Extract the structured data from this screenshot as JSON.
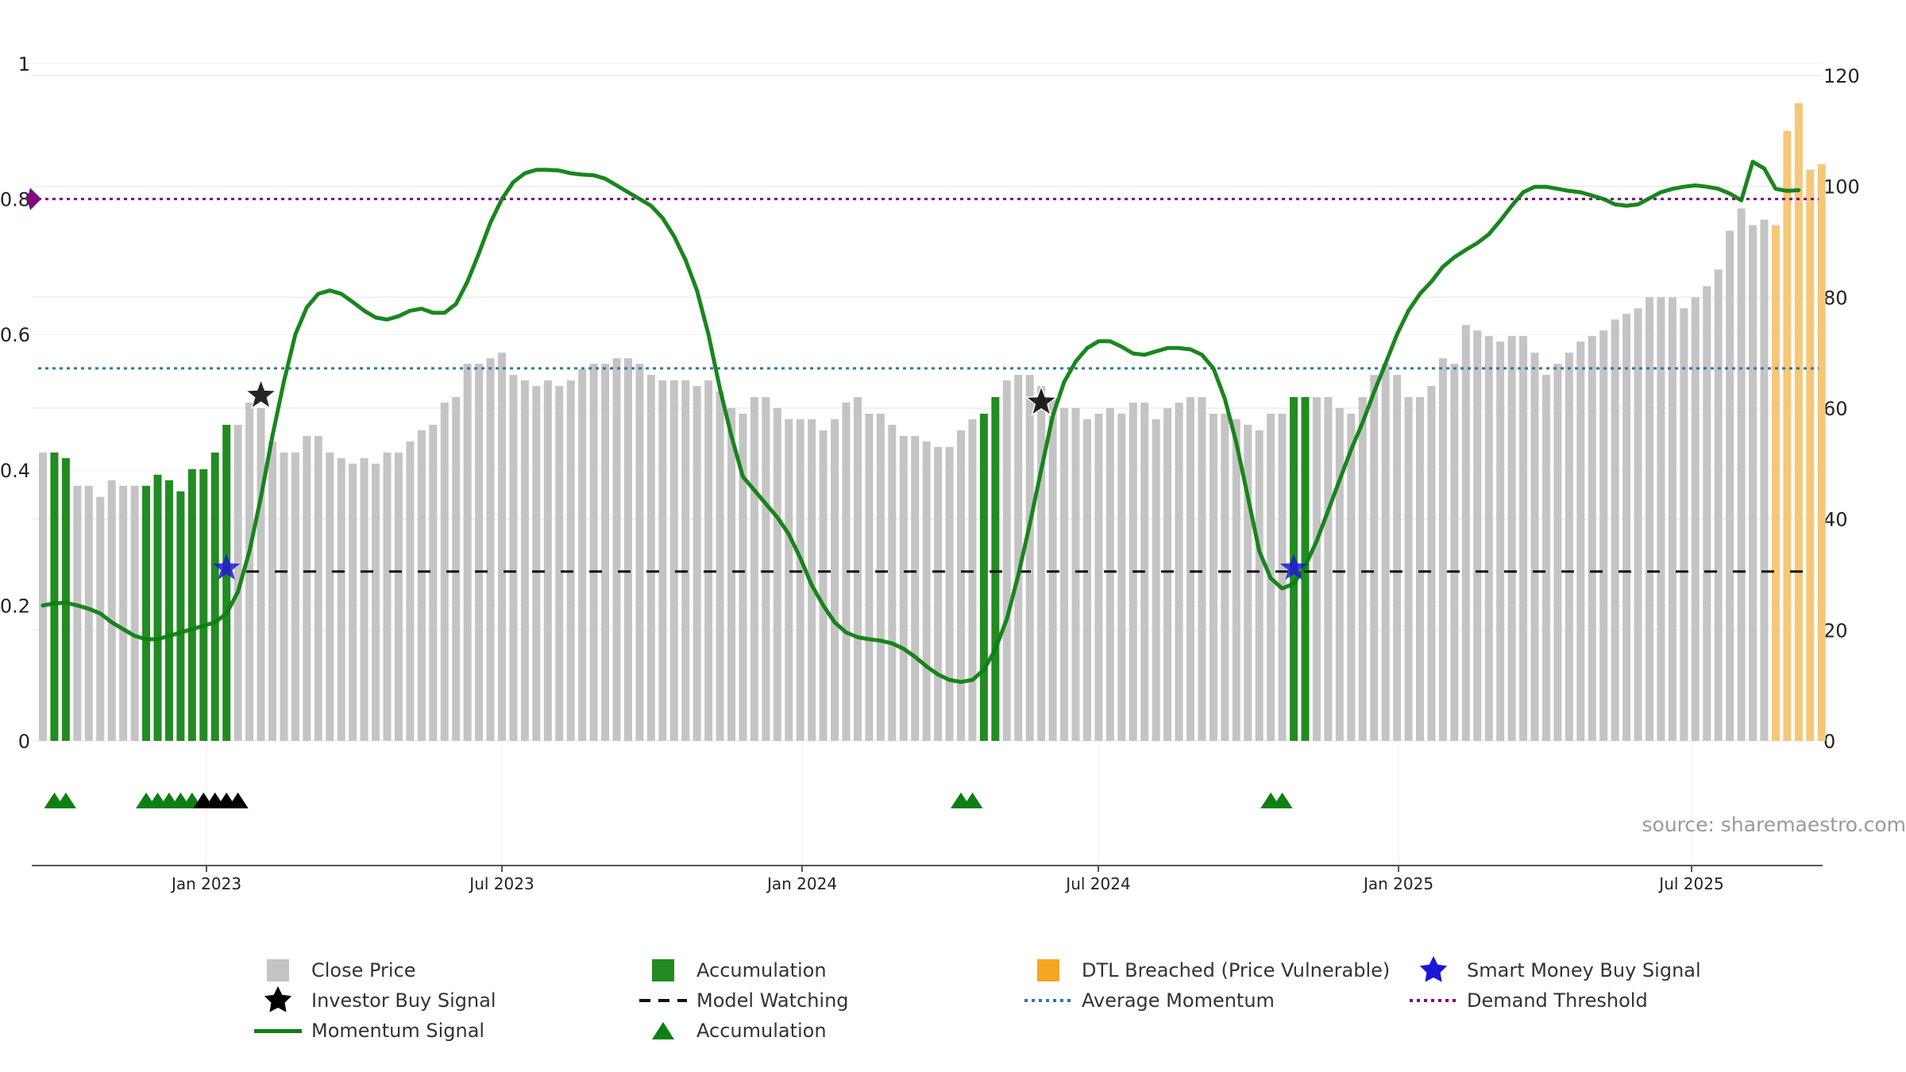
{
  "chart_data": {
    "type": "bar",
    "left_axis": {
      "min": 0,
      "max": 1,
      "ticks": [
        "0",
        "0.2",
        "0.4",
        "0.6",
        "0.8",
        "1"
      ]
    },
    "right_axis": {
      "min": 0,
      "max": 120,
      "ticks": [
        "0",
        "20",
        "40",
        "60",
        "80",
        "100",
        "120"
      ]
    },
    "x_ticks": [
      "Jan 2023",
      "Jul 2023",
      "Jan 2024",
      "Jul 2024",
      "Jan 2025",
      "Jul 2025"
    ],
    "bar_kinds": {
      "G": "Close Price",
      "A": "Accumulation",
      "O": "DTL Breached (Price Vulnerable)"
    },
    "bars": [
      [
        "G",
        52
      ],
      [
        "A",
        52
      ],
      [
        "A",
        51
      ],
      [
        "G",
        46
      ],
      [
        "G",
        46
      ],
      [
        "G",
        44
      ],
      [
        "G",
        47
      ],
      [
        "G",
        46
      ],
      [
        "G",
        46
      ],
      [
        "A",
        46
      ],
      [
        "A",
        48
      ],
      [
        "A",
        47
      ],
      [
        "A",
        45
      ],
      [
        "A",
        49
      ],
      [
        "A",
        49
      ],
      [
        "A",
        52
      ],
      [
        "A",
        57
      ],
      [
        "G",
        57
      ],
      [
        "G",
        61
      ],
      [
        "G",
        60
      ],
      [
        "G",
        54
      ],
      [
        "G",
        52
      ],
      [
        "G",
        52
      ],
      [
        "G",
        55
      ],
      [
        "G",
        55
      ],
      [
        "G",
        52
      ],
      [
        "G",
        51
      ],
      [
        "G",
        50
      ],
      [
        "G",
        51
      ],
      [
        "G",
        50
      ],
      [
        "G",
        52
      ],
      [
        "G",
        52
      ],
      [
        "G",
        54
      ],
      [
        "G",
        56
      ],
      [
        "G",
        57
      ],
      [
        "G",
        61
      ],
      [
        "G",
        62
      ],
      [
        "G",
        68
      ],
      [
        "G",
        68
      ],
      [
        "G",
        69
      ],
      [
        "G",
        70
      ],
      [
        "G",
        66
      ],
      [
        "G",
        65
      ],
      [
        "G",
        64
      ],
      [
        "G",
        65
      ],
      [
        "G",
        64
      ],
      [
        "G",
        65
      ],
      [
        "G",
        67
      ],
      [
        "G",
        68
      ],
      [
        "G",
        68
      ],
      [
        "G",
        69
      ],
      [
        "G",
        69
      ],
      [
        "G",
        68
      ],
      [
        "G",
        66
      ],
      [
        "G",
        65
      ],
      [
        "G",
        65
      ],
      [
        "G",
        65
      ],
      [
        "G",
        64
      ],
      [
        "G",
        65
      ],
      [
        "G",
        63
      ],
      [
        "G",
        60
      ],
      [
        "G",
        59
      ],
      [
        "G",
        62
      ],
      [
        "G",
        62
      ],
      [
        "G",
        60
      ],
      [
        "G",
        58
      ],
      [
        "G",
        58
      ],
      [
        "G",
        58
      ],
      [
        "G",
        56
      ],
      [
        "G",
        58
      ],
      [
        "G",
        61
      ],
      [
        "G",
        62
      ],
      [
        "G",
        59
      ],
      [
        "G",
        59
      ],
      [
        "G",
        57
      ],
      [
        "G",
        55
      ],
      [
        "G",
        55
      ],
      [
        "G",
        54
      ],
      [
        "G",
        53
      ],
      [
        "G",
        53
      ],
      [
        "G",
        56
      ],
      [
        "G",
        58
      ],
      [
        "A",
        59
      ],
      [
        "A",
        62
      ],
      [
        "G",
        65
      ],
      [
        "G",
        66
      ],
      [
        "G",
        66
      ],
      [
        "G",
        64
      ],
      [
        "G",
        62
      ],
      [
        "G",
        60
      ],
      [
        "G",
        60
      ],
      [
        "G",
        58
      ],
      [
        "G",
        59
      ],
      [
        "G",
        60
      ],
      [
        "G",
        59
      ],
      [
        "G",
        61
      ],
      [
        "G",
        61
      ],
      [
        "G",
        58
      ],
      [
        "G",
        60
      ],
      [
        "G",
        61
      ],
      [
        "G",
        62
      ],
      [
        "G",
        62
      ],
      [
        "G",
        59
      ],
      [
        "G",
        59
      ],
      [
        "G",
        58
      ],
      [
        "G",
        57
      ],
      [
        "G",
        56
      ],
      [
        "G",
        59
      ],
      [
        "G",
        59
      ],
      [
        "A",
        62
      ],
      [
        "A",
        62
      ],
      [
        "G",
        62
      ],
      [
        "G",
        62
      ],
      [
        "G",
        60
      ],
      [
        "G",
        59
      ],
      [
        "G",
        62
      ],
      [
        "G",
        66
      ],
      [
        "G",
        68
      ],
      [
        "G",
        66
      ],
      [
        "G",
        62
      ],
      [
        "G",
        62
      ],
      [
        "G",
        64
      ],
      [
        "G",
        69
      ],
      [
        "G",
        68
      ],
      [
        "G",
        75
      ],
      [
        "G",
        74
      ],
      [
        "G",
        73
      ],
      [
        "G",
        72
      ],
      [
        "G",
        73
      ],
      [
        "G",
        73
      ],
      [
        "G",
        70
      ],
      [
        "G",
        66
      ],
      [
        "G",
        68
      ],
      [
        "G",
        70
      ],
      [
        "G",
        72
      ],
      [
        "G",
        73
      ],
      [
        "G",
        74
      ],
      [
        "G",
        76
      ],
      [
        "G",
        77
      ],
      [
        "G",
        78
      ],
      [
        "G",
        80
      ],
      [
        "G",
        80
      ],
      [
        "G",
        80
      ],
      [
        "G",
        78
      ],
      [
        "G",
        80
      ],
      [
        "G",
        82
      ],
      [
        "G",
        85
      ],
      [
        "G",
        92
      ],
      [
        "G",
        96
      ],
      [
        "G",
        93
      ],
      [
        "G",
        94
      ],
      [
        "O",
        93
      ],
      [
        "O",
        110
      ],
      [
        "O",
        115
      ],
      [
        "O",
        103
      ],
      [
        "O",
        104
      ]
    ],
    "momentum_signal": [
      [
        0,
        0.2
      ],
      [
        1,
        0.203
      ],
      [
        2,
        0.204
      ],
      [
        3,
        0.2
      ],
      [
        4,
        0.195
      ],
      [
        5,
        0.188
      ],
      [
        6,
        0.175
      ],
      [
        7,
        0.165
      ],
      [
        8,
        0.155
      ],
      [
        9,
        0.15
      ],
      [
        10,
        0.15
      ],
      [
        11,
        0.155
      ],
      [
        12,
        0.16
      ],
      [
        13,
        0.165
      ],
      [
        14,
        0.17
      ],
      [
        15,
        0.175
      ],
      [
        16,
        0.188
      ],
      [
        17,
        0.22
      ],
      [
        18,
        0.28
      ],
      [
        19,
        0.36
      ],
      [
        20,
        0.45
      ],
      [
        21,
        0.53
      ],
      [
        22,
        0.6
      ],
      [
        23,
        0.64
      ],
      [
        24,
        0.66
      ],
      [
        25,
        0.665
      ],
      [
        26,
        0.66
      ],
      [
        27,
        0.648
      ],
      [
        28,
        0.635
      ],
      [
        29,
        0.625
      ],
      [
        30,
        0.622
      ],
      [
        31,
        0.627
      ],
      [
        32,
        0.635
      ],
      [
        33,
        0.638
      ],
      [
        34,
        0.632
      ],
      [
        35,
        0.632
      ],
      [
        36,
        0.645
      ],
      [
        37,
        0.678
      ],
      [
        38,
        0.72
      ],
      [
        39,
        0.765
      ],
      [
        40,
        0.8
      ],
      [
        41,
        0.825
      ],
      [
        42,
        0.838
      ],
      [
        43,
        0.843
      ],
      [
        44,
        0.843
      ],
      [
        45,
        0.842
      ],
      [
        46,
        0.838
      ],
      [
        47,
        0.836
      ],
      [
        48,
        0.835
      ],
      [
        49,
        0.83
      ],
      [
        50,
        0.82
      ],
      [
        51,
        0.81
      ],
      [
        52,
        0.8
      ],
      [
        53,
        0.79
      ],
      [
        54,
        0.772
      ],
      [
        55,
        0.745
      ],
      [
        56,
        0.71
      ],
      [
        57,
        0.665
      ],
      [
        58,
        0.6
      ],
      [
        59,
        0.52
      ],
      [
        60,
        0.45
      ],
      [
        61,
        0.39
      ],
      [
        62,
        0.37
      ],
      [
        63,
        0.35
      ],
      [
        64,
        0.33
      ],
      [
        65,
        0.305
      ],
      [
        66,
        0.27
      ],
      [
        67,
        0.23
      ],
      [
        68,
        0.2
      ],
      [
        69,
        0.175
      ],
      [
        70,
        0.16
      ],
      [
        71,
        0.153
      ],
      [
        72,
        0.15
      ],
      [
        73,
        0.148
      ],
      [
        74,
        0.144
      ],
      [
        75,
        0.136
      ],
      [
        76,
        0.124
      ],
      [
        77,
        0.11
      ],
      [
        78,
        0.098
      ],
      [
        79,
        0.09
      ],
      [
        80,
        0.087
      ],
      [
        81,
        0.09
      ],
      [
        82,
        0.105
      ],
      [
        83,
        0.135
      ],
      [
        84,
        0.18
      ],
      [
        85,
        0.245
      ],
      [
        86,
        0.32
      ],
      [
        87,
        0.4
      ],
      [
        88,
        0.48
      ],
      [
        89,
        0.53
      ],
      [
        90,
        0.56
      ],
      [
        91,
        0.58
      ],
      [
        92,
        0.59
      ],
      [
        93,
        0.59
      ],
      [
        94,
        0.582
      ],
      [
        95,
        0.572
      ],
      [
        96,
        0.57
      ],
      [
        97,
        0.575
      ],
      [
        98,
        0.58
      ],
      [
        99,
        0.58
      ],
      [
        100,
        0.578
      ],
      [
        101,
        0.57
      ],
      [
        102,
        0.55
      ],
      [
        103,
        0.505
      ],
      [
        104,
        0.44
      ],
      [
        105,
        0.36
      ],
      [
        106,
        0.28
      ],
      [
        107,
        0.24
      ],
      [
        108,
        0.225
      ],
      [
        109,
        0.232
      ],
      [
        110,
        0.258
      ],
      [
        111,
        0.295
      ],
      [
        112,
        0.34
      ],
      [
        113,
        0.385
      ],
      [
        114,
        0.43
      ],
      [
        115,
        0.47
      ],
      [
        116,
        0.515
      ],
      [
        117,
        0.557
      ],
      [
        118,
        0.6
      ],
      [
        119,
        0.635
      ],
      [
        120,
        0.66
      ],
      [
        121,
        0.678
      ],
      [
        122,
        0.7
      ],
      [
        123,
        0.714
      ],
      [
        124,
        0.725
      ],
      [
        125,
        0.735
      ],
      [
        126,
        0.748
      ],
      [
        127,
        0.768
      ],
      [
        128,
        0.79
      ],
      [
        129,
        0.81
      ],
      [
        130,
        0.818
      ],
      [
        131,
        0.818
      ],
      [
        132,
        0.815
      ],
      [
        133,
        0.812
      ],
      [
        134,
        0.81
      ],
      [
        135,
        0.805
      ],
      [
        136,
        0.8
      ],
      [
        137,
        0.792
      ],
      [
        138,
        0.79
      ],
      [
        139,
        0.792
      ],
      [
        140,
        0.801
      ],
      [
        141,
        0.81
      ],
      [
        142,
        0.815
      ],
      [
        143,
        0.818
      ],
      [
        144,
        0.82
      ],
      [
        145,
        0.818
      ],
      [
        146,
        0.815
      ],
      [
        147,
        0.808
      ],
      [
        148,
        0.798
      ],
      [
        149,
        0.855
      ],
      [
        150,
        0.845
      ],
      [
        151,
        0.815
      ],
      [
        152,
        0.812
      ],
      [
        153,
        0.813
      ]
    ],
    "model_watching_level": 0.25,
    "average_momentum": 0.55,
    "demand_threshold": 0.8,
    "investor_buy_signals": [
      [
        19,
        0.51
      ],
      [
        87,
        0.5
      ]
    ],
    "smart_money_buy_signals": [
      [
        16,
        0.255
      ],
      [
        109,
        0.255
      ]
    ],
    "accumulation_markers": {
      "green": [
        1,
        2,
        9,
        10,
        11,
        12,
        13,
        80,
        81,
        107,
        108
      ],
      "black": [
        14,
        15,
        16,
        17
      ]
    },
    "legend": {
      "close_price": "Close Price",
      "accumulation": "Accumulation",
      "dtl_breached": "DTL Breached (Price Vulnerable)",
      "smart_money": "Smart Money Buy Signal",
      "investor_buy": "Investor Buy Signal",
      "model_watching": "Model Watching",
      "average_momentum": "Average Momentum",
      "demand_threshold": "Demand Threshold",
      "momentum_signal": "Momentum Signal",
      "accumulation_marker": "Accumulation"
    },
    "source": "source: sharemaestro.com"
  },
  "colors": {
    "close": "#c4c4c4",
    "accumulation": "#228b22",
    "dtl": "#f5c779",
    "momentum": "#0e7f12",
    "watching": "#111111",
    "avg_momentum": "#2f78a0",
    "demand": "#7f0a7f",
    "smart_money": "#1b16d6",
    "investor": "#000000"
  }
}
